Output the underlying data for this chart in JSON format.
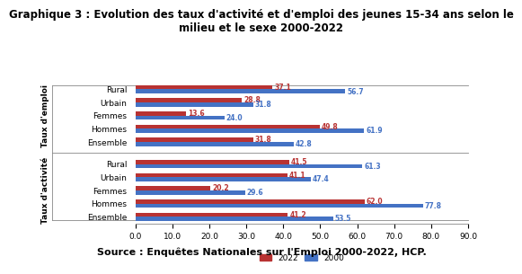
{
  "title": "Graphique 3 : Evolution des taux d'activité et d'emploi des jeunes 15-34 ans selon le\nmilieu et le sexe 2000-2022",
  "source": "Source : Enquêtes Nationales sur l'Emploi 2000-2022, HCP.",
  "section1_label": "Taux d'emploi",
  "section2_label": "Taux d'activité",
  "categories": [
    "Rural",
    "Urbain",
    "Femmes",
    "Hommes",
    "Ensemble"
  ],
  "emploi_2022": [
    37.1,
    28.8,
    13.6,
    49.8,
    31.8
  ],
  "emploi_2000": [
    56.7,
    31.8,
    24.0,
    61.9,
    42.8
  ],
  "activite_2022": [
    41.5,
    41.1,
    20.2,
    62.0,
    41.2
  ],
  "activite_2000": [
    61.3,
    47.4,
    29.6,
    77.8,
    53.5
  ],
  "color_2022": "#B83232",
  "color_2000": "#4472C4",
  "xlim": [
    0,
    90
  ],
  "xticks": [
    0.0,
    10.0,
    20.0,
    30.0,
    40.0,
    50.0,
    60.0,
    70.0,
    80.0,
    90.0
  ],
  "bar_height": 0.32,
  "fontsize_title": 8.5,
  "fontsize_cat": 6.5,
  "fontsize_section": 6.5,
  "fontsize_ticks": 6.5,
  "fontsize_source": 8,
  "fontsize_values": 5.5
}
